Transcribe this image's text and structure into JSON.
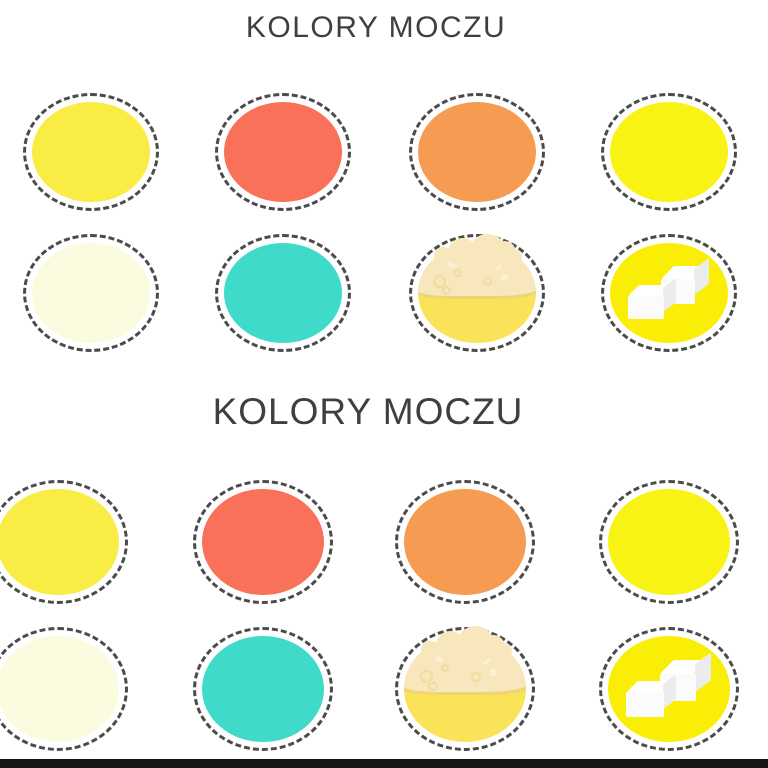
{
  "page": {
    "background": "#FFFFFF",
    "dash_border_color": "#4B4B4B",
    "title_color": "#3F3F3F",
    "bottom_bar_color": "#161616"
  },
  "sections": [
    {
      "title": "KOLORY MOCZU"
    },
    {
      "title": "KOLORY MOCZU"
    }
  ],
  "swatches": [
    {
      "id": "light-yellow",
      "type": "plain",
      "fill": "#F9EC45"
    },
    {
      "id": "coral-red",
      "type": "plain",
      "fill": "#F87158"
    },
    {
      "id": "orange",
      "type": "plain",
      "fill": "#F59C52"
    },
    {
      "id": "bright-yellow",
      "type": "plain",
      "fill": "#F9F215"
    },
    {
      "id": "pale-cream",
      "type": "plain",
      "fill": "#FAFBDF"
    },
    {
      "id": "turquoise",
      "type": "plain",
      "fill": "#3FDACA"
    },
    {
      "id": "foamy-yellow",
      "type": "foam",
      "fill": "#FAE358",
      "foam": "#F8E6BC",
      "bubble": "#FBF1D6",
      "bubble_ring": "#F1DCA0"
    },
    {
      "id": "yellow-sugar-cubes",
      "type": "cubes",
      "fill": "#FAEE06",
      "cube_top": "#FFFFFF",
      "cube_face": "#FBFBFB",
      "cube_side": "#ECECEC"
    }
  ]
}
